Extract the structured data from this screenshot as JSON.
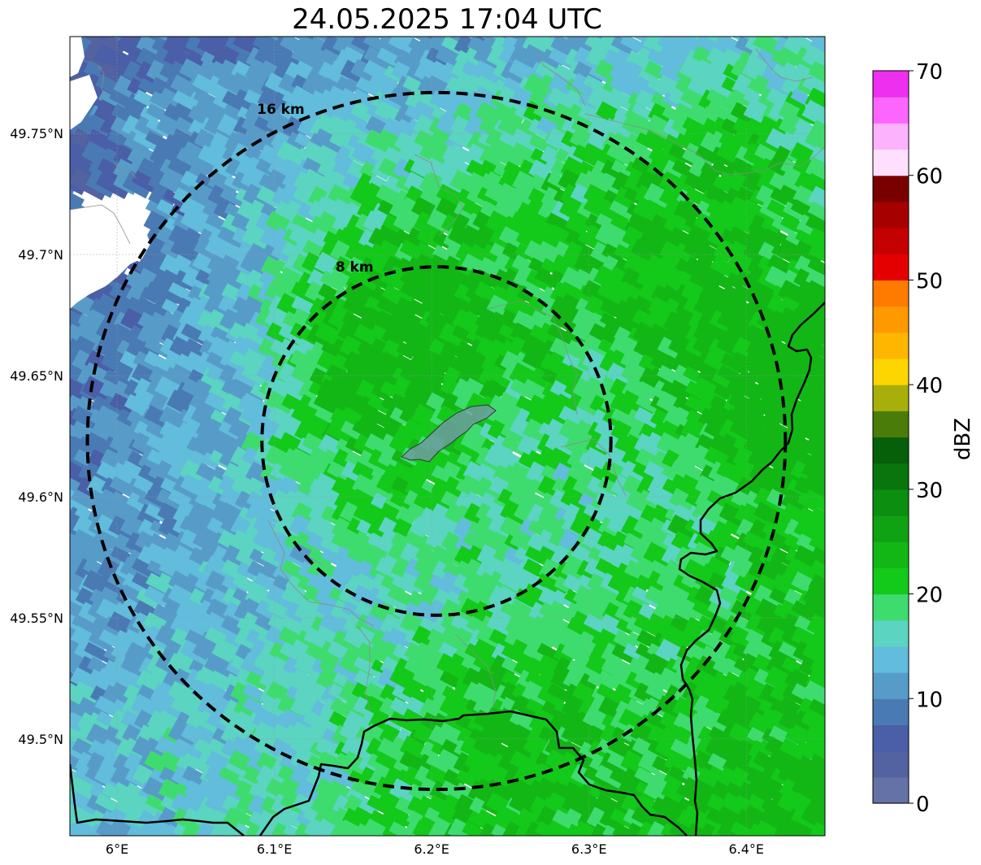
{
  "title": "24.05.2025 17:04 UTC",
  "map": {
    "lon_range": [
      5.97,
      6.45
    ],
    "lat_range": [
      49.46,
      49.79
    ],
    "lon_ticks": [
      {
        "value": 6.0,
        "label": "6°E"
      },
      {
        "value": 6.1,
        "label": "6.1°E"
      },
      {
        "value": 6.2,
        "label": "6.2°E"
      },
      {
        "value": 6.3,
        "label": "6.3°E"
      },
      {
        "value": 6.4,
        "label": "6.4°E"
      }
    ],
    "lat_ticks": [
      {
        "value": 49.75,
        "label": "49.75°N"
      },
      {
        "value": 49.7,
        "label": "49.7°N"
      },
      {
        "value": 49.65,
        "label": "49.65°N"
      },
      {
        "value": 49.6,
        "label": "49.6°N"
      },
      {
        "value": 49.55,
        "label": "49.55°N"
      },
      {
        "value": 49.5,
        "label": "49.5°N"
      }
    ],
    "range_rings": [
      {
        "radius_km": 8,
        "label": "8 km"
      },
      {
        "radius_km": 16,
        "label": "16 km"
      }
    ],
    "center": {
      "lon": 6.203,
      "lat": 49.623
    }
  },
  "colorbar": {
    "label": "dBZ",
    "min": 0,
    "max": 70,
    "tick_values": [
      0,
      10,
      20,
      30,
      40,
      50,
      60,
      70
    ],
    "tick_labels": [
      "0",
      "10",
      "20",
      "30",
      "40",
      "50",
      "60",
      "70"
    ],
    "colors": [
      "#6472a8",
      "#5362a0",
      "#4a5fa7",
      "#4a7ab4",
      "#579cc8",
      "#62bcdb",
      "#5bd4c1",
      "#3edc6e",
      "#13c91a",
      "#12b716",
      "#0fa213",
      "#0c8e10",
      "#08760d",
      "#065f09",
      "#4a7c09",
      "#a8ae0a",
      "#fdd500",
      "#feb600",
      "#fe9900",
      "#fe7b00",
      "#e40000",
      "#c50000",
      "#a60000",
      "#7a0000",
      "#fee0fe",
      "#fdb2fe",
      "#fd66fe",
      "#ee2ff0"
    ]
  }
}
